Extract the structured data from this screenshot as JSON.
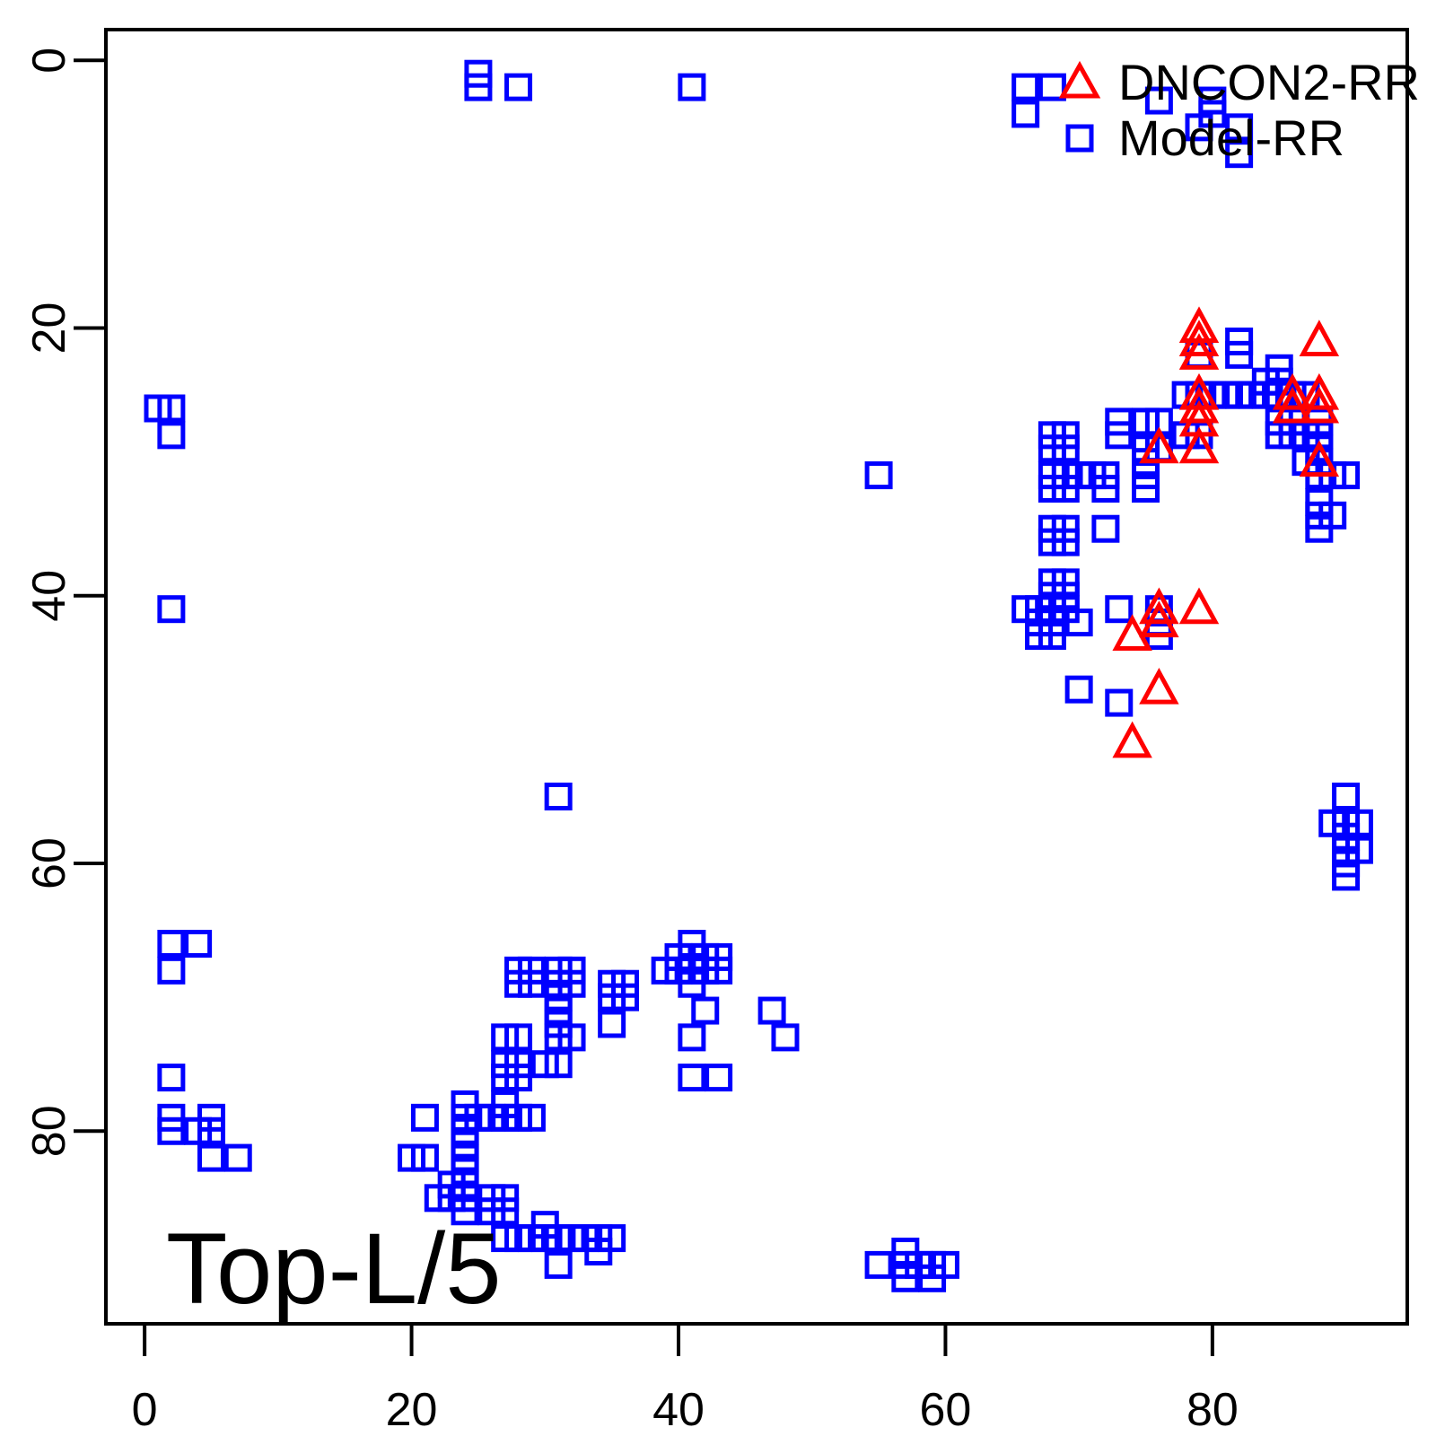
{
  "plot_label": "Top-L/5",
  "colors": {
    "square_series": "#0000FF",
    "triangle_series": "#FF0000",
    "axis": "#000000",
    "background": "#FFFFFF"
  },
  "legend": {
    "position": "top-right",
    "entries": [
      {
        "label": "DNCON2-RR",
        "marker": "triangle",
        "color": "#FF0000"
      },
      {
        "label": "Model-RR",
        "marker": "square",
        "color": "#0000FF"
      }
    ]
  },
  "chart_data": {
    "type": "scatter",
    "title": "",
    "annotation": "Top-L/5",
    "xlabel": "",
    "ylabel": "",
    "axes": {
      "x_ticks": [
        0,
        20,
        40,
        60,
        80
      ],
      "y_ticks": [
        0,
        20,
        40,
        60,
        80
      ],
      "x_range": [
        -2.9,
        94.6
      ],
      "y_range": [
        -2.3,
        94.4
      ],
      "y_inverted": true,
      "grid": false
    },
    "series": [
      {
        "name": "DNCON2-RR",
        "marker": "triangle",
        "color": "#FF0000",
        "points": [
          [
            79,
            20
          ],
          [
            79,
            21
          ],
          [
            79,
            22
          ],
          [
            88,
            21
          ],
          [
            79,
            25
          ],
          [
            79,
            26
          ],
          [
            79,
            27
          ],
          [
            86,
            25
          ],
          [
            86,
            26
          ],
          [
            88,
            25
          ],
          [
            88,
            26
          ],
          [
            76,
            29
          ],
          [
            79,
            29
          ],
          [
            88,
            30
          ],
          [
            76,
            41
          ],
          [
            76,
            42
          ],
          [
            79,
            41
          ],
          [
            74,
            43
          ],
          [
            76,
            47
          ],
          [
            74,
            51
          ]
        ]
      },
      {
        "name": "Model-RR",
        "marker": "square",
        "color": "#0000FF",
        "points": [
          [
            25,
            1
          ],
          [
            25,
            2
          ],
          [
            28,
            2
          ],
          [
            41,
            2
          ],
          [
            66,
            2
          ],
          [
            68,
            2
          ],
          [
            66,
            4
          ],
          [
            76,
            3
          ],
          [
            80,
            3
          ],
          [
            80,
            4
          ],
          [
            79,
            5
          ],
          [
            82,
            5
          ],
          [
            82,
            7
          ],
          [
            1,
            26
          ],
          [
            2,
            26
          ],
          [
            2,
            28
          ],
          [
            2,
            41
          ],
          [
            55,
            31
          ],
          [
            31,
            55
          ],
          [
            79,
            22
          ],
          [
            82,
            21
          ],
          [
            82,
            22
          ],
          [
            85,
            23
          ],
          [
            84,
            24
          ],
          [
            85,
            24
          ],
          [
            78,
            25
          ],
          [
            79,
            25
          ],
          [
            80,
            25
          ],
          [
            81,
            25
          ],
          [
            82,
            25
          ],
          [
            83,
            25
          ],
          [
            84,
            25
          ],
          [
            85,
            25
          ],
          [
            86,
            25
          ],
          [
            87,
            25
          ],
          [
            78,
            28
          ],
          [
            79,
            28
          ],
          [
            73,
            27
          ],
          [
            73,
            28
          ],
          [
            75,
            27
          ],
          [
            76,
            27
          ],
          [
            75,
            29
          ],
          [
            76,
            29
          ],
          [
            75,
            30
          ],
          [
            75,
            31
          ],
          [
            75,
            32
          ],
          [
            68,
            28
          ],
          [
            69,
            28
          ],
          [
            68,
            29
          ],
          [
            69,
            29
          ],
          [
            68,
            31
          ],
          [
            69,
            31
          ],
          [
            70,
            31
          ],
          [
            71,
            31
          ],
          [
            72,
            31
          ],
          [
            68,
            32
          ],
          [
            69,
            32
          ],
          [
            72,
            32
          ],
          [
            68,
            35
          ],
          [
            69,
            35
          ],
          [
            68,
            36
          ],
          [
            69,
            36
          ],
          [
            72,
            35
          ],
          [
            85,
            27
          ],
          [
            86,
            27
          ],
          [
            85,
            28
          ],
          [
            86,
            28
          ],
          [
            87,
            28
          ],
          [
            88,
            27
          ],
          [
            88,
            28
          ],
          [
            88,
            29
          ],
          [
            88,
            30
          ],
          [
            88,
            31
          ],
          [
            87,
            30
          ],
          [
            89,
            31
          ],
          [
            90,
            31
          ],
          [
            88,
            33
          ],
          [
            88,
            34
          ],
          [
            89,
            34
          ],
          [
            88,
            35
          ],
          [
            68,
            39
          ],
          [
            69,
            39
          ],
          [
            68,
            40
          ],
          [
            69,
            40
          ],
          [
            66,
            41
          ],
          [
            67,
            41
          ],
          [
            68,
            41
          ],
          [
            69,
            41
          ],
          [
            67,
            42
          ],
          [
            68,
            42
          ],
          [
            67,
            43
          ],
          [
            68,
            43
          ],
          [
            70,
            42
          ],
          [
            73,
            41
          ],
          [
            76,
            41
          ],
          [
            76,
            42
          ],
          [
            76,
            43
          ],
          [
            70,
            47
          ],
          [
            73,
            48
          ],
          [
            90,
            55
          ],
          [
            89,
            57
          ],
          [
            90,
            57
          ],
          [
            91,
            57
          ],
          [
            90,
            58
          ],
          [
            90,
            59
          ],
          [
            91,
            59
          ],
          [
            90,
            60
          ],
          [
            90,
            61
          ],
          [
            41,
            66
          ],
          [
            40,
            67
          ],
          [
            41,
            67
          ],
          [
            42,
            67
          ],
          [
            43,
            67
          ],
          [
            39,
            68
          ],
          [
            40,
            68
          ],
          [
            41,
            68
          ],
          [
            42,
            68
          ],
          [
            43,
            68
          ],
          [
            41,
            69
          ],
          [
            42,
            71
          ],
          [
            47,
            71
          ],
          [
            41,
            73
          ],
          [
            48,
            73
          ],
          [
            28,
            68
          ],
          [
            29,
            68
          ],
          [
            28,
            69
          ],
          [
            29,
            69
          ],
          [
            31,
            68
          ],
          [
            32,
            68
          ],
          [
            31,
            69
          ],
          [
            32,
            69
          ],
          [
            31,
            70
          ],
          [
            31,
            71
          ],
          [
            31,
            72
          ],
          [
            31,
            73
          ],
          [
            32,
            73
          ],
          [
            27,
            73
          ],
          [
            28,
            73
          ],
          [
            35,
            69
          ],
          [
            36,
            69
          ],
          [
            35,
            70
          ],
          [
            36,
            70
          ],
          [
            35,
            72
          ],
          [
            27,
            75
          ],
          [
            28,
            75
          ],
          [
            27,
            76
          ],
          [
            28,
            76
          ],
          [
            30,
            75
          ],
          [
            31,
            75
          ],
          [
            41,
            76
          ],
          [
            43,
            76
          ],
          [
            27,
            78
          ],
          [
            21,
            79
          ],
          [
            24,
            78
          ],
          [
            24,
            79
          ],
          [
            24,
            80
          ],
          [
            24,
            81
          ],
          [
            24,
            82
          ],
          [
            24,
            83
          ],
          [
            24,
            84
          ],
          [
            24,
            85
          ],
          [
            24,
            86
          ],
          [
            25,
            79
          ],
          [
            26,
            79
          ],
          [
            27,
            79
          ],
          [
            28,
            79
          ],
          [
            29,
            79
          ],
          [
            20,
            82
          ],
          [
            21,
            82
          ],
          [
            23,
            84
          ],
          [
            22,
            85
          ],
          [
            23,
            85
          ],
          [
            26,
            85
          ],
          [
            27,
            85
          ],
          [
            26,
            86
          ],
          [
            27,
            86
          ],
          [
            30,
            87
          ],
          [
            31,
            90
          ],
          [
            34,
            89
          ],
          [
            27,
            88
          ],
          [
            28,
            88
          ],
          [
            29,
            88
          ],
          [
            30,
            88
          ],
          [
            31,
            88
          ],
          [
            32,
            88
          ],
          [
            33,
            88
          ],
          [
            34,
            88
          ],
          [
            35,
            88
          ],
          [
            55,
            90
          ],
          [
            57,
            89
          ],
          [
            57,
            90
          ],
          [
            58,
            90
          ],
          [
            59,
            90
          ],
          [
            60,
            90
          ],
          [
            57,
            91
          ],
          [
            59,
            91
          ],
          [
            2,
            66
          ],
          [
            4,
            66
          ],
          [
            2,
            68
          ],
          [
            2,
            76
          ],
          [
            2,
            79
          ],
          [
            2,
            80
          ],
          [
            4,
            80
          ],
          [
            5,
            79
          ],
          [
            5,
            80
          ],
          [
            5,
            82
          ],
          [
            7,
            82
          ]
        ]
      }
    ],
    "legend_position": "top-right"
  }
}
